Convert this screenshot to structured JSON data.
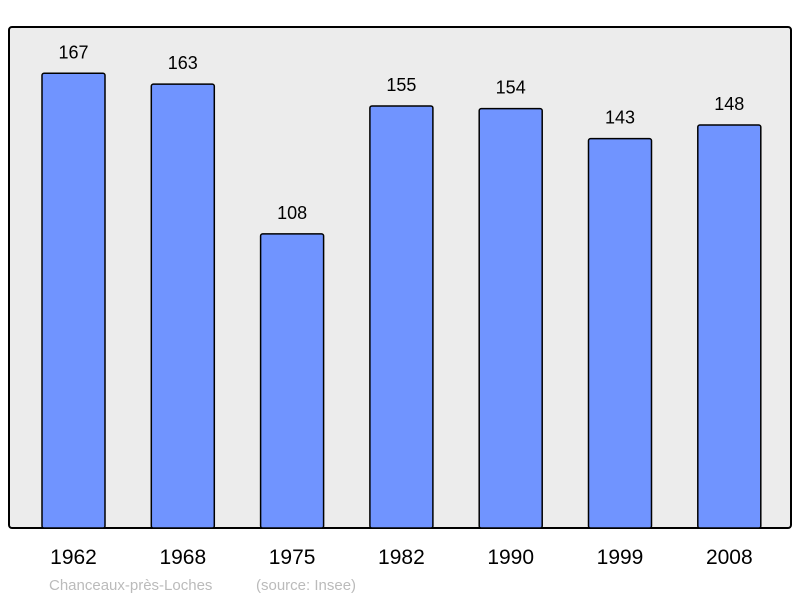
{
  "chart_data": {
    "type": "bar",
    "categories": [
      "1962",
      "1968",
      "1975",
      "1982",
      "1990",
      "1999",
      "2008"
    ],
    "values": [
      167,
      163,
      108,
      155,
      154,
      143,
      148
    ],
    "title": "",
    "xlabel": "",
    "ylabel": "",
    "ylim": [
      0,
      184
    ],
    "grid": false,
    "data_labels": true,
    "colors": {
      "bar": "#7094ff",
      "plot_background": "#ececec",
      "border": "#000000",
      "caption": "#bbbbbb"
    }
  },
  "caption": {
    "place": "Chanceaux-près-Loches",
    "source": "(source: Insee)"
  }
}
